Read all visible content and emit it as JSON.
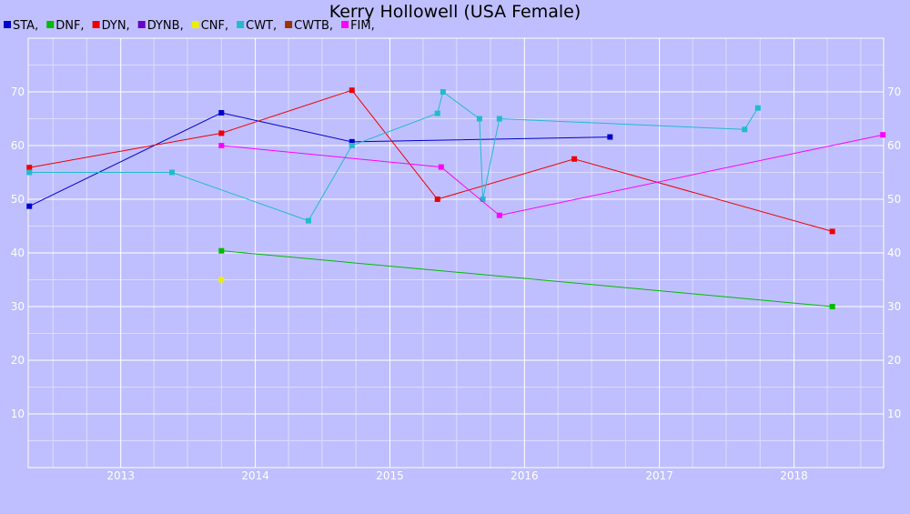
{
  "chart_data": {
    "type": "line",
    "title": "Kerry Hollowell (USA Female)",
    "xlabel": "",
    "ylabel": "",
    "x_axis": {
      "type": "date",
      "range": [
        "2012-04-25",
        "2018-09-01"
      ],
      "tick_labels": [
        "2013",
        "2014",
        "2015",
        "2016",
        "2017",
        "2018"
      ],
      "tick_dates": [
        "2013-01-01",
        "2014-01-01",
        "2015-01-01",
        "2016-01-01",
        "2017-01-01",
        "2018-01-01"
      ]
    },
    "y_axis": {
      "range": [
        0,
        80
      ],
      "ticks": [
        10,
        20,
        30,
        40,
        50,
        60,
        70
      ],
      "left_and_right_labels": true
    },
    "grid": true,
    "legend_position": "top-left",
    "series": [
      {
        "name": "STA",
        "color": "#0000cc",
        "points": [
          {
            "x": "2012-04-28",
            "y": 48.7
          },
          {
            "x": "2013-10-01",
            "y": 66.1
          },
          {
            "x": "2014-09-20",
            "y": 60.7
          },
          {
            "x": "2016-08-20",
            "y": 61.6
          }
        ]
      },
      {
        "name": "DNF",
        "color": "#00bb00",
        "points": [
          {
            "x": "2013-10-01",
            "y": 40.4
          },
          {
            "x": "2018-04-15",
            "y": 30.0
          }
        ]
      },
      {
        "name": "DYN",
        "color": "#ee0000",
        "points": [
          {
            "x": "2012-04-28",
            "y": 55.9
          },
          {
            "x": "2013-10-01",
            "y": 62.3
          },
          {
            "x": "2014-09-20",
            "y": 70.3
          },
          {
            "x": "2015-05-10",
            "y": 50.0
          },
          {
            "x": "2016-05-15",
            "y": 57.5
          },
          {
            "x": "2018-04-15",
            "y": 44.0
          }
        ]
      },
      {
        "name": "DYNB",
        "color": "#6600cc",
        "points": []
      },
      {
        "name": "CNF",
        "color": "#eeee00",
        "points": [
          {
            "x": "2013-10-01",
            "y": 35.0
          }
        ]
      },
      {
        "name": "CWT",
        "color": "#22bbcc",
        "points": [
          {
            "x": "2012-04-28",
            "y": 55.0
          },
          {
            "x": "2013-05-20",
            "y": 55.0
          },
          {
            "x": "2014-05-25",
            "y": 46.0
          },
          {
            "x": "2014-09-20",
            "y": 60.0
          },
          {
            "x": "2015-05-10",
            "y": 66.0
          },
          {
            "x": "2015-05-25",
            "y": 70.0
          },
          {
            "x": "2015-09-01",
            "y": 65.0
          },
          {
            "x": "2015-09-10",
            "y": 50.0
          },
          {
            "x": "2015-10-25",
            "y": 65.0
          },
          {
            "x": "2017-08-20",
            "y": 63.0
          },
          {
            "x": "2017-09-25",
            "y": 67.0
          }
        ]
      },
      {
        "name": "CWTB",
        "color": "#993300",
        "points": []
      },
      {
        "name": "FIM",
        "color": "#ff00ff",
        "points": [
          {
            "x": "2013-10-01",
            "y": 60.0
          },
          {
            "x": "2015-05-20",
            "y": 56.0
          },
          {
            "x": "2015-10-25",
            "y": 47.0
          },
          {
            "x": "2018-08-30",
            "y": 62.0
          }
        ]
      }
    ]
  }
}
